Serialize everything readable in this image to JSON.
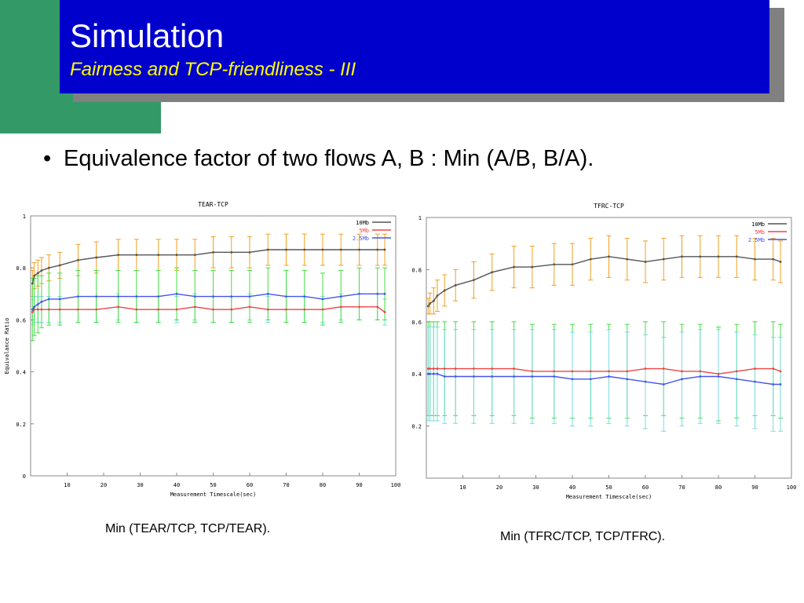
{
  "slide": {
    "title": "Simulation",
    "subtitle": "Fairness and TCP-friendliness - III",
    "bullet": "Equivalence factor of two flows A, B :  Min (A/B, B/A).",
    "caption_left": "Min (TEAR/TCP, TCP/TEAR).",
    "caption_right": "Min (TFRC/TCP, TCP/TFRC).",
    "colors": {
      "title_bg": "#0000cc",
      "title_text": "#ffffff",
      "subtitle_text": "#ffff00",
      "accent_green": "#339966",
      "shadow": "#808080"
    }
  },
  "chart_data": [
    {
      "type": "line",
      "title": "TEAR-TCP",
      "xlabel": "Measurement Timescale(sec)",
      "ylabel": "Equivalance Ratio",
      "xlim": [
        0,
        100
      ],
      "ylim": [
        0,
        1
      ],
      "xticks": [
        10,
        20,
        30,
        40,
        50,
        60,
        70,
        80,
        90,
        100
      ],
      "yticks": [
        0,
        0.2,
        0.4,
        0.6,
        0.8,
        1
      ],
      "ytick_labels": [
        "0",
        "0.2",
        "0.4",
        "0.6",
        "0.8",
        "1"
      ],
      "legend_position": "top-right",
      "grid": false,
      "x": [
        0.5,
        1,
        2,
        3,
        5,
        8,
        13,
        18,
        24,
        29,
        35,
        40,
        45,
        50,
        55,
        60,
        65,
        70,
        75,
        80,
        85,
        90,
        95,
        97
      ],
      "series": [
        {
          "name": "10Mb",
          "color": "#555555",
          "error_color": "#f0a020",
          "values": [
            0.74,
            0.77,
            0.78,
            0.79,
            0.8,
            0.81,
            0.83,
            0.84,
            0.85,
            0.85,
            0.85,
            0.85,
            0.85,
            0.86,
            0.86,
            0.86,
            0.87,
            0.87,
            0.87,
            0.87,
            0.87,
            0.87,
            0.87,
            0.87
          ],
          "error": [
            0.05,
            0.05,
            0.05,
            0.05,
            0.05,
            0.05,
            0.06,
            0.06,
            0.06,
            0.06,
            0.06,
            0.06,
            0.06,
            0.06,
            0.06,
            0.06,
            0.06,
            0.06,
            0.06,
            0.06,
            0.06,
            0.06,
            0.06,
            0.06
          ]
        },
        {
          "name": "5Mb",
          "color": "#ee4444",
          "error_color": "#7adadf",
          "values": [
            0.63,
            0.64,
            0.64,
            0.64,
            0.64,
            0.64,
            0.64,
            0.64,
            0.65,
            0.64,
            0.64,
            0.64,
            0.65,
            0.64,
            0.64,
            0.65,
            0.64,
            0.64,
            0.64,
            0.64,
            0.65,
            0.65,
            0.65,
            0.63
          ],
          "error": [
            0.05,
            0.05,
            0.05,
            0.05,
            0.05,
            0.05,
            0.05,
            0.05,
            0.05,
            0.05,
            0.05,
            0.05,
            0.05,
            0.05,
            0.05,
            0.05,
            0.05,
            0.05,
            0.05,
            0.05,
            0.05,
            0.05,
            0.05,
            0.05
          ]
        },
        {
          "name": "2.5Mb",
          "color": "#4455ee",
          "error_color": "#44dd44",
          "values": [
            0.64,
            0.65,
            0.66,
            0.67,
            0.68,
            0.68,
            0.69,
            0.69,
            0.69,
            0.69,
            0.69,
            0.7,
            0.69,
            0.69,
            0.69,
            0.69,
            0.7,
            0.69,
            0.69,
            0.68,
            0.69,
            0.7,
            0.7,
            0.7
          ],
          "error": [
            0.12,
            0.11,
            0.11,
            0.1,
            0.1,
            0.1,
            0.1,
            0.1,
            0.1,
            0.1,
            0.1,
            0.1,
            0.1,
            0.1,
            0.1,
            0.1,
            0.1,
            0.1,
            0.1,
            0.1,
            0.1,
            0.1,
            0.1,
            0.1
          ]
        }
      ]
    },
    {
      "type": "line",
      "title": "TFRC-TCP",
      "xlabel": "Measurement Timescale(sec)",
      "ylabel": "",
      "xlim": [
        0,
        100
      ],
      "ylim": [
        0,
        1
      ],
      "xticks": [
        10,
        20,
        30,
        40,
        50,
        60,
        70,
        80,
        90,
        100
      ],
      "yticks": [
        0.2,
        0.4,
        0.6,
        0.8,
        1
      ],
      "ytick_labels": [
        "0.2",
        "0.4",
        "0.6",
        "0.8",
        "1"
      ],
      "legend_position": "top-right",
      "grid": false,
      "x": [
        0.5,
        1,
        2,
        3,
        5,
        8,
        13,
        18,
        24,
        29,
        35,
        40,
        45,
        50,
        55,
        60,
        65,
        70,
        75,
        80,
        85,
        90,
        95,
        97
      ],
      "series": [
        {
          "name": "10Mb",
          "color": "#555555",
          "error_color": "#f0a020",
          "values": [
            0.66,
            0.67,
            0.68,
            0.7,
            0.72,
            0.74,
            0.76,
            0.79,
            0.81,
            0.81,
            0.82,
            0.82,
            0.84,
            0.85,
            0.84,
            0.83,
            0.84,
            0.85,
            0.85,
            0.85,
            0.85,
            0.84,
            0.84,
            0.83
          ],
          "error": [
            0.03,
            0.04,
            0.05,
            0.06,
            0.06,
            0.06,
            0.07,
            0.07,
            0.08,
            0.08,
            0.08,
            0.08,
            0.08,
            0.08,
            0.08,
            0.08,
            0.08,
            0.08,
            0.08,
            0.08,
            0.08,
            0.08,
            0.08,
            0.08
          ]
        },
        {
          "name": "5Mb",
          "color": "#ee4444",
          "error_color": "#44dd44",
          "values": [
            0.42,
            0.42,
            0.42,
            0.42,
            0.42,
            0.42,
            0.42,
            0.42,
            0.42,
            0.41,
            0.41,
            0.41,
            0.41,
            0.41,
            0.41,
            0.42,
            0.42,
            0.41,
            0.41,
            0.4,
            0.41,
            0.42,
            0.42,
            0.41
          ],
          "error": [
            0.18,
            0.18,
            0.18,
            0.18,
            0.18,
            0.18,
            0.18,
            0.18,
            0.18,
            0.18,
            0.18,
            0.18,
            0.18,
            0.18,
            0.18,
            0.18,
            0.18,
            0.18,
            0.18,
            0.18,
            0.18,
            0.18,
            0.18,
            0.18
          ]
        },
        {
          "name": "2.5Mb",
          "color": "#4455ee",
          "error_color": "#7adadf",
          "values": [
            0.4,
            0.4,
            0.4,
            0.4,
            0.39,
            0.39,
            0.39,
            0.39,
            0.39,
            0.39,
            0.39,
            0.38,
            0.38,
            0.39,
            0.38,
            0.37,
            0.36,
            0.38,
            0.39,
            0.39,
            0.38,
            0.37,
            0.36,
            0.36
          ],
          "error": [
            0.18,
            0.18,
            0.18,
            0.18,
            0.18,
            0.18,
            0.18,
            0.18,
            0.18,
            0.18,
            0.18,
            0.18,
            0.18,
            0.18,
            0.18,
            0.18,
            0.18,
            0.18,
            0.18,
            0.18,
            0.18,
            0.18,
            0.18,
            0.18
          ]
        }
      ]
    }
  ]
}
